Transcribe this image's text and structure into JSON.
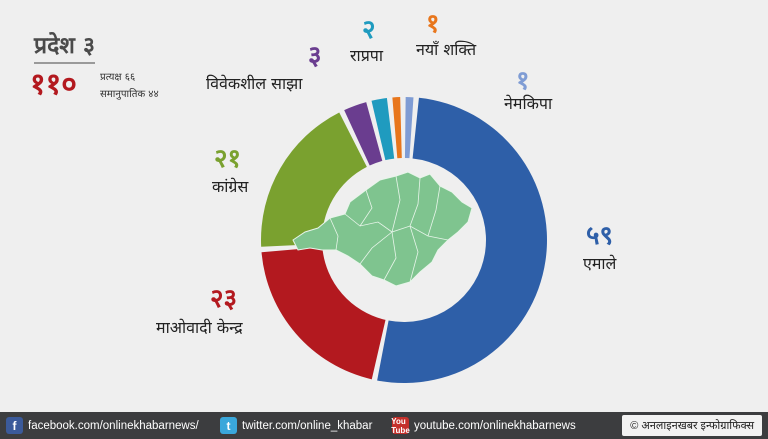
{
  "header": {
    "title": "प्रदेश ३",
    "total": "११०",
    "direct_label": "प्रत्यक्ष ६६",
    "proportional_label": "समानुपातिक ४४"
  },
  "chart_data": {
    "type": "pie",
    "variant": "donut",
    "title": "प्रदेश ३",
    "total": 110,
    "slices": [
      {
        "name": "एमाले",
        "value": 59,
        "label": "५९",
        "color": "#2e5fa8"
      },
      {
        "name": "माओवादी केन्द्र",
        "value": 23,
        "label": "२३",
        "color": "#b3191f"
      },
      {
        "name": "कांग्रेस",
        "value": 21,
        "label": "२१",
        "color": "#7aa12f"
      },
      {
        "name": "विवेकशील साझा",
        "value": 3,
        "label": "३",
        "color": "#6a3d8f"
      },
      {
        "name": "राप्रपा",
        "value": 2,
        "label": "२",
        "color": "#1f9bbf"
      },
      {
        "name": "नयाँ शक्ति",
        "value": 1,
        "label": "१",
        "color": "#e8761c"
      },
      {
        "name": "नेमकिपा",
        "value": 1,
        "label": "१",
        "color": "#7f9cd4"
      }
    ]
  },
  "colors": {
    "background": "#efefef",
    "map_fill": "#7fc48f",
    "footer_bg": "#3c3d3f"
  },
  "footer": {
    "facebook_icon": "facebook-icon",
    "facebook": "facebook.com/onlinekhabarnews/",
    "twitter_icon": "twitter-icon",
    "twitter": "twitter.com/online_khabar",
    "youtube_icon": "youtube-icon",
    "youtube_badge": "You Tube",
    "youtube": "youtube.com/onlinekhabarnews",
    "credit": "© अनलाइनखबर इन्फोग्राफिक्स"
  }
}
